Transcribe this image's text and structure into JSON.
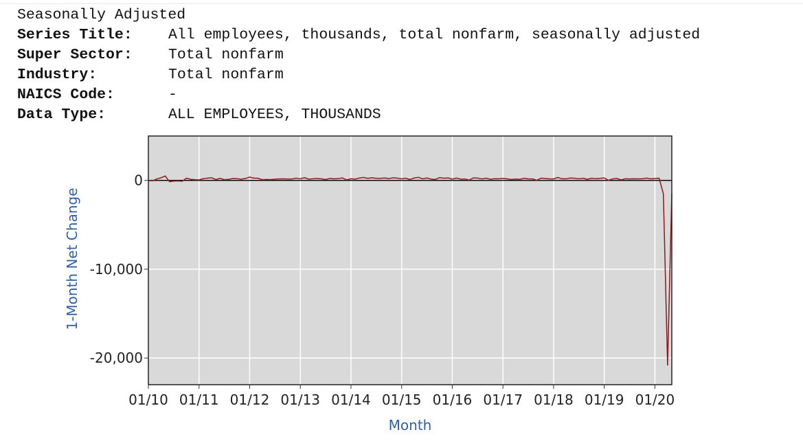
{
  "header": {
    "adjustment": "Seasonally Adjusted",
    "fields": [
      {
        "label": "Series Title:",
        "value": "All employees, thousands, total nonfarm, seasonally adjusted"
      },
      {
        "label": "Super Sector:",
        "value": "Total nonfarm"
      },
      {
        "label": "Industry:",
        "value": "Total nonfarm"
      },
      {
        "label": "NAICS Code:",
        "value": "-"
      },
      {
        "label": "Data Type:",
        "value": "ALL EMPLOYEES, THOUSANDS"
      }
    ]
  },
  "colors": {
    "plot_background": "#d9d9d9",
    "grid": "#ffffff",
    "line": "#8b1a1a",
    "axis_label": "#3060a8"
  },
  "chart_data": {
    "type": "line",
    "title": "",
    "xlabel": "Month",
    "ylabel": "1-Month Net Change",
    "ylim": [
      -23000,
      5000
    ],
    "yticks": [
      0,
      -10000,
      -20000
    ],
    "ytick_labels": [
      "0",
      "-10,000",
      "-20,000"
    ],
    "xticks": [
      "01/10",
      "01/11",
      "01/12",
      "01/13",
      "01/14",
      "01/15",
      "01/16",
      "01/17",
      "01/18",
      "01/19",
      "01/20"
    ],
    "x_range": [
      "2010-01",
      "2020-05"
    ],
    "grid": true,
    "zero_line": true,
    "series": [
      {
        "x": [
          "2010-01",
          "2010-02",
          "2010-03",
          "2010-04",
          "2010-05",
          "2010-06",
          "2010-07",
          "2010-08",
          "2010-09",
          "2010-10",
          "2010-11",
          "2010-12",
          "2011-01",
          "2011-02",
          "2011-03",
          "2011-04",
          "2011-05",
          "2011-06",
          "2011-07",
          "2011-08",
          "2011-09",
          "2011-10",
          "2011-11",
          "2011-12",
          "2012-01",
          "2012-02",
          "2012-03",
          "2012-04",
          "2012-05",
          "2012-06",
          "2012-07",
          "2012-08",
          "2012-09",
          "2012-10",
          "2012-11",
          "2012-12",
          "2013-01",
          "2013-02",
          "2013-03",
          "2013-04",
          "2013-05",
          "2013-06",
          "2013-07",
          "2013-08",
          "2013-09",
          "2013-10",
          "2013-11",
          "2013-12",
          "2014-01",
          "2014-02",
          "2014-03",
          "2014-04",
          "2014-05",
          "2014-06",
          "2014-07",
          "2014-08",
          "2014-09",
          "2014-10",
          "2014-11",
          "2014-12",
          "2015-01",
          "2015-02",
          "2015-03",
          "2015-04",
          "2015-05",
          "2015-06",
          "2015-07",
          "2015-08",
          "2015-09",
          "2015-10",
          "2015-11",
          "2015-12",
          "2016-01",
          "2016-02",
          "2016-03",
          "2016-04",
          "2016-05",
          "2016-06",
          "2016-07",
          "2016-08",
          "2016-09",
          "2016-10",
          "2016-11",
          "2016-12",
          "2017-01",
          "2017-02",
          "2017-03",
          "2017-04",
          "2017-05",
          "2017-06",
          "2017-07",
          "2017-08",
          "2017-09",
          "2017-10",
          "2017-11",
          "2017-12",
          "2018-01",
          "2018-02",
          "2018-03",
          "2018-04",
          "2018-05",
          "2018-06",
          "2018-07",
          "2018-08",
          "2018-09",
          "2018-10",
          "2018-11",
          "2018-12",
          "2019-01",
          "2019-02",
          "2019-03",
          "2019-04",
          "2019-05",
          "2019-06",
          "2019-07",
          "2019-08",
          "2019-09",
          "2019-10",
          "2019-11",
          "2019-12",
          "2020-01",
          "2020-02",
          "2020-03",
          "2020-04",
          "2020-05"
        ],
        "values": [
          -20,
          -40,
          160,
          300,
          500,
          -140,
          -80,
          -60,
          -100,
          250,
          130,
          80,
          60,
          200,
          250,
          300,
          100,
          240,
          80,
          120,
          220,
          200,
          140,
          220,
          370,
          260,
          240,
          80,
          110,
          90,
          150,
          170,
          180,
          160,
          160,
          250,
          190,
          310,
          150,
          190,
          220,
          180,
          100,
          230,
          180,
          210,
          280,
          60,
          190,
          150,
          270,
          330,
          230,
          300,
          230,
          230,
          270,
          210,
          300,
          250,
          190,
          250,
          100,
          280,
          340,
          180,
          270,
          150,
          110,
          320,
          240,
          280,
          150,
          260,
          150,
          160,
          40,
          290,
          260,
          170,
          250,
          140,
          190,
          190,
          230,
          180,
          100,
          160,
          130,
          240,
          180,
          170,
          20,
          250,
          220,
          180,
          170,
          330,
          190,
          190,
          270,
          240,
          190,
          240,
          130,
          240,
          200,
          230,
          280,
          10,
          170,
          220,
          60,
          190,
          170,
          190,
          180,
          190,
          260,
          180,
          210,
          250,
          -1500,
          -20800,
          -1500
        ]
      }
    ]
  }
}
